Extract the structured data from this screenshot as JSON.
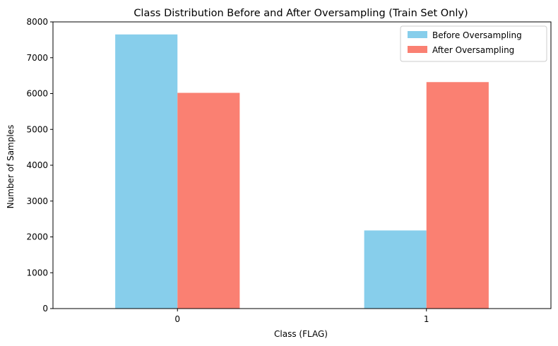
{
  "chart_data": {
    "type": "bar",
    "title": "Class Distribution Before and After Oversampling (Train Set Only)",
    "xlabel": "Class (FLAG)",
    "ylabel": "Number of Samples",
    "categories": [
      "0",
      "1"
    ],
    "series": [
      {
        "name": "Before Oversampling",
        "color": "#87ceeb",
        "values": [
          7650,
          2180
        ]
      },
      {
        "name": "After Oversampling",
        "color": "#fa8072",
        "values": [
          6020,
          6320
        ]
      }
    ],
    "ylim": [
      0,
      8000
    ],
    "yticks": [
      0,
      1000,
      2000,
      3000,
      4000,
      5000,
      6000,
      7000,
      8000
    ],
    "grid": false,
    "legend_position": "top-right"
  }
}
